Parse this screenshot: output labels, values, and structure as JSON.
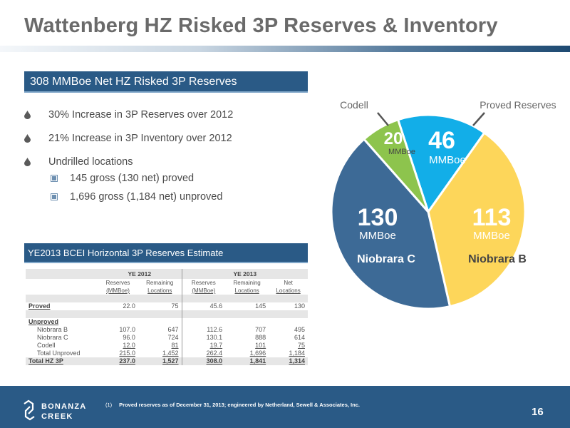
{
  "title": "Wattenberg HZ Risked 3P Reserves & Inventory",
  "banner": "308 MMBoe Net HZ Risked 3P Reserves",
  "bullets": [
    "30% Increase in 3P Reserves over 2012",
    "21% Increase in 3P Inventory over 2012",
    "Undrilled locations"
  ],
  "sub_bullets": [
    "145 gross (130 net) proved",
    "1,696 gross (1,184 net) unproved"
  ],
  "table": {
    "title": "YE2013 BCEI Horizontal 3P Reserves Estimate",
    "year_2012": "YE 2012",
    "year_2013": "YE 2013",
    "col_headers": [
      "Reserves",
      "Remaining",
      "Reserves",
      "Remaining",
      "Net"
    ],
    "col_subheaders": [
      "(MMBoe)",
      "Locations",
      "(MMBoe)",
      "Locations",
      "Locations"
    ],
    "rows": {
      "proved": {
        "label": "Proved",
        "v": [
          "22.0",
          "75",
          "45.6",
          "145",
          "130"
        ]
      },
      "unproved_label": "Unproved",
      "niobrara_b": {
        "label": "Niobrara B",
        "v": [
          "107.0",
          "647",
          "112.6",
          "707",
          "495"
        ]
      },
      "niobrara_c": {
        "label": "Niobrara C",
        "v": [
          "96.0",
          "724",
          "130.1",
          "888",
          "614"
        ]
      },
      "codell": {
        "label": "Codell",
        "v": [
          "12.0",
          "81",
          "19.7",
          "101",
          "75"
        ]
      },
      "total_unproved": {
        "label": "Total Unproved",
        "v": [
          "215.0",
          "1,452",
          "262.4",
          "1,696",
          "1,184"
        ]
      },
      "total": {
        "label": "Total HZ 3P",
        "v": [
          "237.0",
          "1,527",
          "308.0",
          "1,841",
          "1,314"
        ]
      }
    }
  },
  "chart_data": {
    "type": "pie",
    "slices": [
      {
        "label": "Proved Reserves",
        "value": 46,
        "unit": "MMBoe",
        "color": "#12aee8"
      },
      {
        "label": "Niobrara B",
        "value": 113,
        "unit": "MMBoe",
        "color": "#fdd65a"
      },
      {
        "label": "Niobrara C",
        "value": 130,
        "unit": "MMBoe",
        "color": "#3d6a96"
      },
      {
        "label": "Codell",
        "value": 20,
        "unit": "MMBoe",
        "color": "#8dc44d"
      }
    ]
  },
  "footnote": {
    "mark": "(1)",
    "text": "Proved reserves as of December 31, 2013; engineered by Netherland, Sewell & Associates, Inc."
  },
  "logo": {
    "line1": "BONANZA",
    "line2": "CREEK"
  },
  "page_number": "16",
  "colors": {
    "accent": "#2a5a86",
    "title": "#6a6a6a"
  }
}
